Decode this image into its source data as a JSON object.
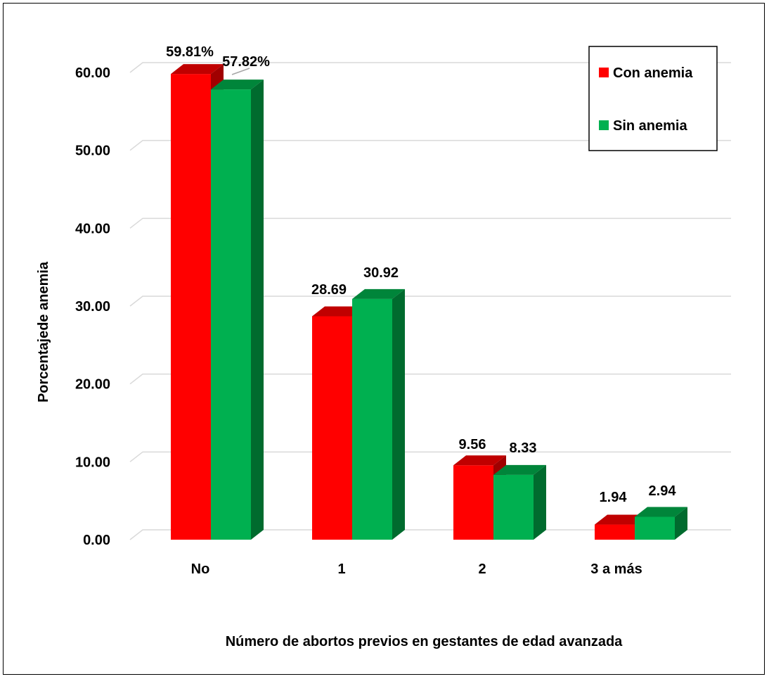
{
  "chart_data": {
    "type": "bar",
    "categories": [
      "No",
      "1",
      "2",
      "3 a más"
    ],
    "series": [
      {
        "name": "Con anemia",
        "values": [
          59.81,
          28.69,
          9.56,
          1.94
        ],
        "labels": [
          "59.81%",
          "28.69",
          "9.56",
          "1.94"
        ],
        "color": "#ff0000",
        "top_color": "#c00000",
        "side_color": "#a00000"
      },
      {
        "name": "Sin anemia",
        "values": [
          57.82,
          30.92,
          8.33,
          2.94
        ],
        "labels": [
          "57.82%",
          "30.92",
          "8.33",
          "2.94"
        ],
        "color": "#00b050",
        "top_color": "#00853a",
        "side_color": "#006b2e"
      }
    ],
    "title": "",
    "xlabel": "Número de abortos previos en gestantes de edad avanzada",
    "ylabel": "Porcentajede anemia",
    "ylim": [
      0,
      60
    ],
    "yticks": [
      "0.00",
      "10.00",
      "20.00",
      "30.00",
      "40.00",
      "50.00",
      "60.00"
    ],
    "ytick_values": [
      0,
      10,
      20,
      30,
      40,
      50,
      60
    ],
    "grid": true,
    "legend": "top-right",
    "bar_style": "3d"
  }
}
